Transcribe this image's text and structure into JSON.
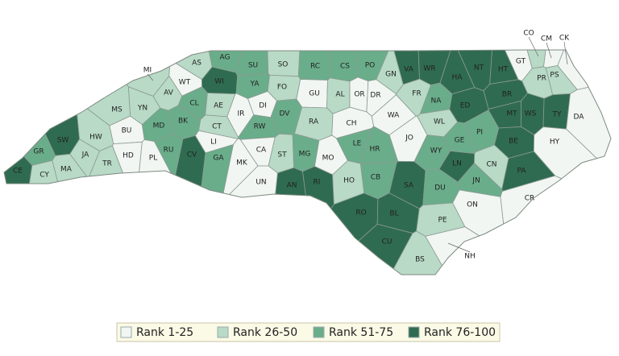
{
  "legend": [
    {
      "label": "Rank 1-25",
      "color": "#f1f6f3"
    },
    {
      "label": "Rank 26-50",
      "color": "#b8dac7"
    },
    {
      "label": "Rank 51-75",
      "color": "#6aad8b"
    },
    {
      "label": "Rank 76-100",
      "color": "#2f6b50"
    }
  ],
  "counties": [
    {
      "label": "AS",
      "category": "Rank 26-50"
    },
    {
      "label": "AG",
      "category": "Rank 51-75"
    },
    {
      "label": "SU",
      "category": "Rank 51-75"
    },
    {
      "label": "SO",
      "category": "Rank 26-50"
    },
    {
      "label": "RC",
      "category": "Rank 51-75"
    },
    {
      "label": "CS",
      "category": "Rank 51-75"
    },
    {
      "label": "PO",
      "category": "Rank 51-75"
    },
    {
      "label": "GN",
      "category": "Rank 26-50"
    },
    {
      "label": "VA",
      "category": "Rank 76-100"
    },
    {
      "label": "WR",
      "category": "Rank 76-100"
    },
    {
      "label": "NT",
      "category": "Rank 76-100"
    },
    {
      "label": "HT",
      "category": "Rank 76-100"
    },
    {
      "label": "GT",
      "category": "Rank 1-25"
    },
    {
      "label": "CO",
      "category": "Rank 26-50"
    },
    {
      "label": "CM",
      "category": "Rank 1-25"
    },
    {
      "label": "CK",
      "category": "Rank 1-25"
    },
    {
      "label": "PR",
      "category": "Rank 26-50"
    },
    {
      "label": "PS",
      "category": "Rank 26-50"
    },
    {
      "label": "MI",
      "category": "Rank 26-50"
    },
    {
      "label": "WT",
      "category": "Rank 1-25"
    },
    {
      "label": "WI",
      "category": "Rank 76-100"
    },
    {
      "label": "YA",
      "category": "Rank 51-75"
    },
    {
      "label": "FO",
      "category": "Rank 26-50"
    },
    {
      "label": "GU",
      "category": "Rank 1-25"
    },
    {
      "label": "AL",
      "category": "Rank 26-50"
    },
    {
      "label": "OR",
      "category": "Rank 1-25"
    },
    {
      "label": "DR",
      "category": "Rank 1-25"
    },
    {
      "label": "FR",
      "category": "Rank 26-50"
    },
    {
      "label": "HA",
      "category": "Rank 76-100"
    },
    {
      "label": "BR",
      "category": "Rank 76-100"
    },
    {
      "label": "AV",
      "category": "Rank 26-50"
    },
    {
      "label": "YN",
      "category": "Rank 26-50"
    },
    {
      "label": "MS",
      "category": "Rank 26-50"
    },
    {
      "label": "CL",
      "category": "Rank 51-75"
    },
    {
      "label": "AE",
      "category": "Rank 26-50"
    },
    {
      "label": "IR",
      "category": "Rank 1-25"
    },
    {
      "label": "DI",
      "category": "Rank 1-25"
    },
    {
      "label": "DV",
      "category": "Rank 51-75"
    },
    {
      "label": "RA",
      "category": "Rank 26-50"
    },
    {
      "label": "CH",
      "category": "Rank 1-25"
    },
    {
      "label": "WA",
      "category": "Rank 1-25"
    },
    {
      "label": "NA",
      "category": "Rank 51-75"
    },
    {
      "label": "ED",
      "category": "Rank 76-100"
    },
    {
      "label": "MT",
      "category": "Rank 76-100"
    },
    {
      "label": "WS",
      "category": "Rank 76-100"
    },
    {
      "label": "TY",
      "category": "Rank 76-100"
    },
    {
      "label": "DA",
      "category": "Rank 1-25"
    },
    {
      "label": "HW",
      "category": "Rank 26-50"
    },
    {
      "label": "BU",
      "category": "Rank 1-25"
    },
    {
      "label": "MD",
      "category": "Rank 51-75"
    },
    {
      "label": "BK",
      "category": "Rank 51-75"
    },
    {
      "label": "CT",
      "category": "Rank 26-50"
    },
    {
      "label": "RW",
      "category": "Rank 51-75"
    },
    {
      "label": "WL",
      "category": "Rank 26-50"
    },
    {
      "label": "PI",
      "category": "Rank 51-75"
    },
    {
      "label": "BE",
      "category": "Rank 76-100"
    },
    {
      "label": "HY",
      "category": "Rank 1-25"
    },
    {
      "label": "SW",
      "category": "Rank 76-100"
    },
    {
      "label": "JA",
      "category": "Rank 26-50"
    },
    {
      "label": "GR",
      "category": "Rank 51-75"
    },
    {
      "label": "LI",
      "category": "Rank 1-25"
    },
    {
      "label": "LE",
      "category": "Rank 51-75"
    },
    {
      "label": "HR",
      "category": "Rank 51-75"
    },
    {
      "label": "JO",
      "category": "Rank 1-25"
    },
    {
      "label": "GE",
      "category": "Rank 51-75"
    },
    {
      "label": "RU",
      "category": "Rank 51-75"
    },
    {
      "label": "CV",
      "category": "Rank 76-100"
    },
    {
      "label": "GA",
      "category": "Rank 51-75"
    },
    {
      "label": "CA",
      "category": "Rank 1-25"
    },
    {
      "label": "MO",
      "category": "Rank 1-25"
    },
    {
      "label": "WY",
      "category": "Rank 51-75"
    },
    {
      "label": "LN",
      "category": "Rank 76-100"
    },
    {
      "label": "HD",
      "category": "Rank 1-25"
    },
    {
      "label": "PL",
      "category": "Rank 1-25"
    },
    {
      "label": "MK",
      "category": "Rank 1-25"
    },
    {
      "label": "ST",
      "category": "Rank 26-50"
    },
    {
      "label": "MG",
      "category": "Rank 51-75"
    },
    {
      "label": "TR",
      "category": "Rank 26-50"
    },
    {
      "label": "CN",
      "category": "Rank 26-50"
    },
    {
      "label": "PA",
      "category": "Rank 76-100"
    },
    {
      "label": "CE",
      "category": "Rank 76-100"
    },
    {
      "label": "CY",
      "category": "Rank 26-50"
    },
    {
      "label": "MA",
      "category": "Rank 26-50"
    },
    {
      "label": "JN",
      "category": "Rank 51-75"
    },
    {
      "label": "CB",
      "category": "Rank 51-75"
    },
    {
      "label": "SA",
      "category": "Rank 76-100"
    },
    {
      "label": "DU",
      "category": "Rank 51-75"
    },
    {
      "label": "AN",
      "category": "Rank 76-100"
    },
    {
      "label": "RI",
      "category": "Rank 76-100"
    },
    {
      "label": "HO",
      "category": "Rank 26-50"
    },
    {
      "label": "UN",
      "category": "Rank 1-25"
    },
    {
      "label": "CR",
      "category": "Rank 1-25"
    },
    {
      "label": "ON",
      "category": "Rank 1-25"
    },
    {
      "label": "RO",
      "category": "Rank 76-100"
    },
    {
      "label": "BL",
      "category": "Rank 76-100"
    },
    {
      "label": "PE",
      "category": "Rank 26-50"
    },
    {
      "label": "CU",
      "category": "Rank 76-100"
    },
    {
      "label": "BS",
      "category": "Rank 26-50"
    },
    {
      "label": "NH",
      "category": "Rank 1-25"
    }
  ]
}
